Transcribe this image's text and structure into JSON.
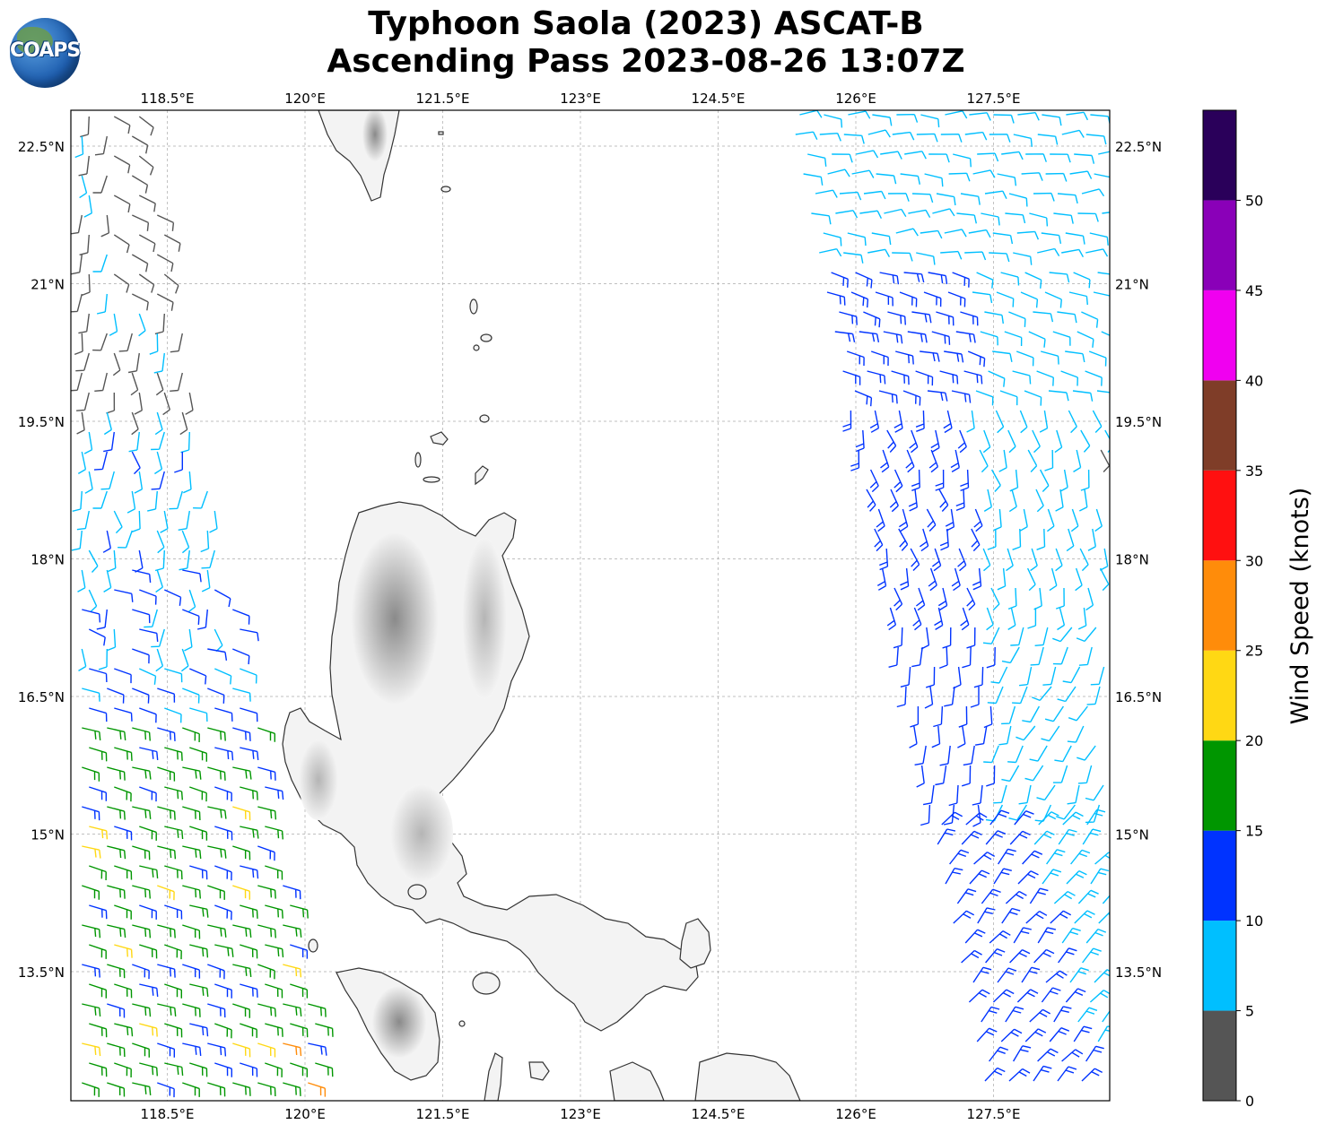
{
  "title": {
    "line1": "Typhoon Saola (2023) ASCAT-B",
    "line2": "Ascending Pass 2023-08-26 13:07Z"
  },
  "logo": {
    "text": "COAPS"
  },
  "map": {
    "lon_ticks": [
      "118.5°E",
      "120°E",
      "121.5°E",
      "123°E",
      "124.5°E",
      "126°E",
      "127.5°E"
    ],
    "lat_ticks": [
      "22.5°N",
      "21°N",
      "19.5°N",
      "18°N",
      "16.5°N",
      "15°N",
      "13.5°N"
    ],
    "lon_range": [
      117.5,
      128.8
    ],
    "lat_range": [
      12.2,
      23.0
    ],
    "gridlines": true,
    "land_shading": "grayscale terrain (Luzon, Philippines)"
  },
  "colorbar": {
    "label": "Wind Speed (knots)",
    "tick_labels": [
      "0",
      "5",
      "10",
      "15",
      "20",
      "25",
      "30",
      "35",
      "40",
      "45",
      "50"
    ],
    "bins": [
      {
        "min": 0,
        "max": 5,
        "color": "#555555"
      },
      {
        "min": 5,
        "max": 10,
        "color": "#00bfff"
      },
      {
        "min": 10,
        "max": 15,
        "color": "#0033ff"
      },
      {
        "min": 15,
        "max": 20,
        "color": "#009600"
      },
      {
        "min": 20,
        "max": 25,
        "color": "#ffd814"
      },
      {
        "min": 25,
        "max": 30,
        "color": "#ff8c0a"
      },
      {
        "min": 30,
        "max": 35,
        "color": "#ff1010"
      },
      {
        "min": 35,
        "max": 40,
        "color": "#7f3d28"
      },
      {
        "min": 40,
        "max": 45,
        "color": "#f000f0"
      },
      {
        "min": 45,
        "max": 50,
        "color": "#8a00b8"
      },
      {
        "min": 50,
        "max": 55,
        "color": "#2a005a"
      }
    ]
  },
  "swaths": [
    {
      "name": "west",
      "dominant_speeds_kt": "0-20",
      "notable_colors": [
        "#555555",
        "#00bfff",
        "#0033ff",
        "#009600",
        "#ffd814",
        "#ff8c0a"
      ]
    },
    {
      "name": "east",
      "dominant_speeds_kt": "5-15",
      "notable_colors": [
        "#00bfff",
        "#0033ff"
      ]
    }
  ]
}
